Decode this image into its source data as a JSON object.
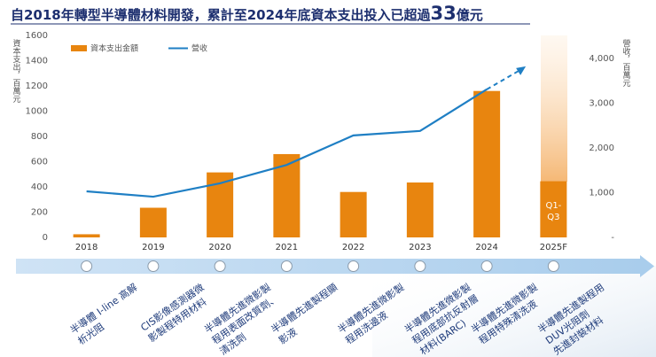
{
  "chart_data": {
    "type": "bar_line",
    "title_parts": [
      "自2018年轉型半導體材料開發，累計至2024年底資本支出投入已超過",
      "33",
      "億元"
    ],
    "y_label": "資本支出，百萬元",
    "y2_label": "營收，百萬元",
    "categories": [
      "2018",
      "2019",
      "2020",
      "2021",
      "2022",
      "2023",
      "2024",
      "2025F"
    ],
    "series": [
      {
        "name": "資本支出金額",
        "color": "#e8850f",
        "kind": "bar",
        "values": [
          25,
          235,
          515,
          660,
          360,
          435,
          1160,
          445
        ]
      },
      {
        "name": "營收",
        "color": "#1f7fc4",
        "kind": "line",
        "axis": "y2",
        "values": [
          1030,
          910,
          1210,
          1620,
          2280,
          2380,
          3310,
          null
        ]
      }
    ],
    "annotation": [
      "Q1-",
      "Q3"
    ],
    "ylim": [
      0,
      1600
    ],
    "yticks": [
      0,
      200,
      400,
      600,
      800,
      1000,
      1200,
      1400,
      1600
    ],
    "y2lim": [
      0,
      4515
    ],
    "y2ticks": [
      {
        "value": 0,
        "label": "-"
      },
      {
        "value": 1000,
        "label": "1,000"
      },
      {
        "value": 2000,
        "label": "2,000"
      },
      {
        "value": 3000,
        "label": "3,000"
      },
      {
        "value": 4000,
        "label": "4,000"
      }
    ],
    "milestones": [
      [
        "半導體 I-line 高解",
        "析光阻"
      ],
      [
        "CIS影像感測器微",
        "影製程特用材料"
      ],
      [
        "半導體先進微影製",
        "程用表面改質劑、",
        "清洗劑"
      ],
      [
        "半導體先進製程顯",
        "影液"
      ],
      [
        "半導體先進微影製",
        "程用洗邊液"
      ],
      [
        "半導體先進微影製",
        "程用底部抗反射層",
        "材料(BARC)"
      ],
      [
        "半導體先進微影製",
        "程用特殊清洗液"
      ],
      [
        "半導體先進製程用",
        "DUV光阻劑",
        "先進封裝材料"
      ]
    ]
  }
}
